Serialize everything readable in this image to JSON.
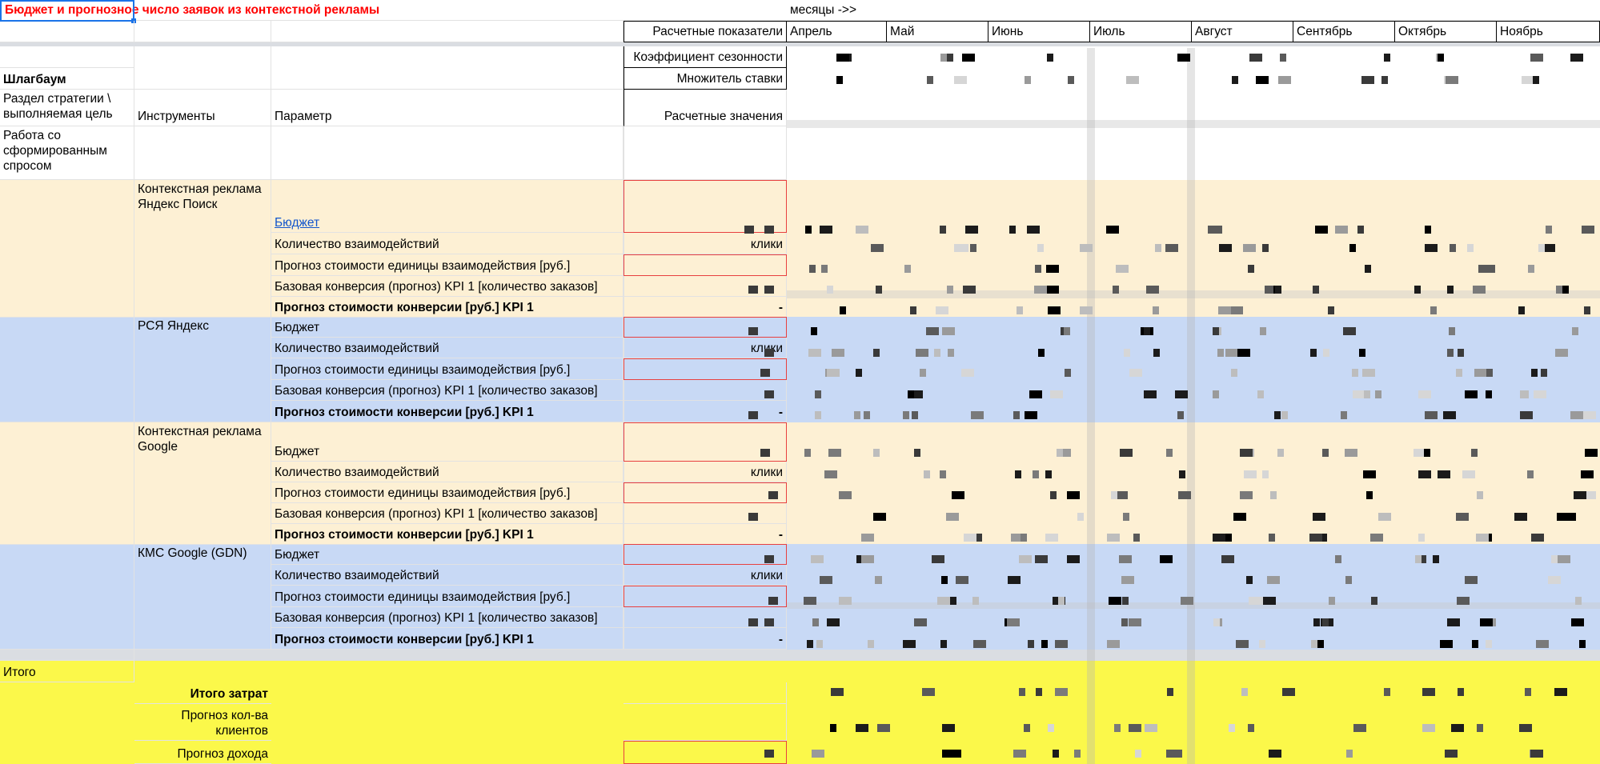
{
  "sheet": {
    "title": "Бюджет и прогнозное число заявок из контекстной рекламы",
    "months_header": "месяцы ->>",
    "months": [
      "Апрель",
      "Май",
      "Июнь",
      "Июль",
      "Август",
      "Сентябрь",
      "Октябрь",
      "Ноябрь"
    ],
    "calc_indicators": "Расчетные показатели",
    "seasonality": "Коэффициент сезонности",
    "rate_multiplier": "Множитель ставки",
    "project": "Шлагбаум",
    "col_strategy": "Раздел стратегии \\ выполняемая цель",
    "col_tools": "Инструменты",
    "col_param": "Параметр",
    "col_calc_values": "Расчетные значения",
    "strategy_section": "Работа со сформированным спросом",
    "total_label": "Итого",
    "colors": {
      "orange_band": "#fdf0d4",
      "blue_band": "#c8d9f5",
      "yellow_band": "#fbf84a",
      "title_red": "#ff0000",
      "link_blue": "#1155cc",
      "input_border_red": "#e8403f"
    }
  },
  "groups": [
    {
      "tool": "Контекстная реклама Яндекс Поиск",
      "band": "orange",
      "rows": [
        {
          "param": "Бюджет",
          "value": "",
          "link": true
        },
        {
          "param": "Количество взаимодействий",
          "value": "клики"
        },
        {
          "param": "Прогноз стоимости единицы взаимодействия [руб.]",
          "value": ""
        },
        {
          "param": "Базовая конверсия (прогноз) KPI 1 [количество заказов]",
          "value": ""
        },
        {
          "param": "Прогноз стоимости конверсии [руб.] KPI 1",
          "value": "-",
          "bold": true
        }
      ]
    },
    {
      "tool": "РСЯ Яндекс",
      "band": "blue",
      "rows": [
        {
          "param": "Бюджет",
          "value": ""
        },
        {
          "param": "Количество взаимодействий",
          "value": "клики"
        },
        {
          "param": "Прогноз стоимости единицы взаимодействия [руб.]",
          "value": ""
        },
        {
          "param": "Базовая конверсия (прогноз) KPI 1 [количество заказов]",
          "value": ""
        },
        {
          "param": "Прогноз стоимости конверсии [руб.] KPI 1",
          "value": "-",
          "bold": true
        }
      ]
    },
    {
      "tool": "Контекстная реклама Google",
      "band": "orange",
      "rows": [
        {
          "param": "Бюджет",
          "value": ""
        },
        {
          "param": "Количество взаимодействий",
          "value": "клики"
        },
        {
          "param": "Прогноз стоимости единицы взаимодействия [руб.]",
          "value": ""
        },
        {
          "param": "Базовая конверсия (прогноз) KPI 1 [количество заказов]",
          "value": ""
        },
        {
          "param": "Прогноз стоимости конверсии [руб.] KPI 1",
          "value": "-",
          "bold": true
        }
      ]
    },
    {
      "tool": "КМС Google (GDN)",
      "band": "blue",
      "rows": [
        {
          "param": "Бюджет",
          "value": ""
        },
        {
          "param": "Количество взаимодействий",
          "value": "клики"
        },
        {
          "param": "Прогноз стоимости единицы взаимодействия [руб.]",
          "value": ""
        },
        {
          "param": "Базовая конверсия (прогноз) KPI 1 [количество заказов]",
          "value": ""
        },
        {
          "param": "Прогноз стоимости конверсии [руб.] KPI 1",
          "value": "-",
          "bold": true
        }
      ]
    }
  ],
  "totals": [
    {
      "label": "Итого затрат",
      "bold": true
    },
    {
      "label": "Прогноз кол-ва клиентов"
    },
    {
      "label": "Прогноз дохода"
    }
  ]
}
